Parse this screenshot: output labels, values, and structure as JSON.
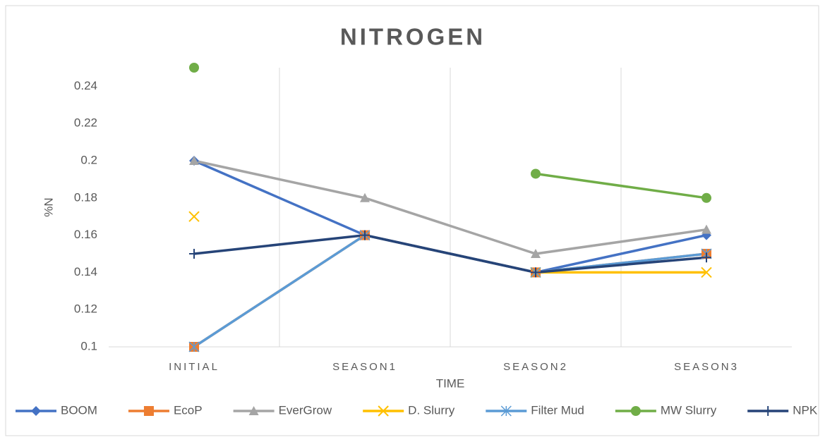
{
  "chart_data": {
    "type": "line",
    "title": "NITROGEN",
    "x_label": "TIME",
    "y_label": "%N",
    "categories": [
      "INITIAL",
      "SEASON1",
      "SEASON2",
      "SEASON3"
    ],
    "series": [
      {
        "name": "BOOM",
        "color": "#4472c4",
        "marker": "diamond",
        "values": [
          0.2,
          0.16,
          0.14,
          0.16
        ]
      },
      {
        "name": "EcoP",
        "color": "#ed7d31",
        "marker": "square",
        "values": [
          0.1,
          0.16,
          0.14,
          0.15
        ]
      },
      {
        "name": "EverGrow",
        "color": "#a5a5a5",
        "marker": "triangle",
        "values": [
          0.2,
          0.18,
          0.15,
          0.163
        ]
      },
      {
        "name": "D. Slurry",
        "color": "#ffc000",
        "marker": "x",
        "values": [
          0.17,
          null,
          0.14,
          0.14
        ]
      },
      {
        "name": "Filter Mud",
        "color": "#5b9bd5",
        "marker": "asterisk",
        "values": [
          0.1,
          0.16,
          0.14,
          0.15
        ]
      },
      {
        "name": "MW Slurry",
        "color": "#70ad47",
        "marker": "circle",
        "values": [
          0.25,
          null,
          0.193,
          0.18
        ]
      },
      {
        "name": "NPK",
        "color": "#264478",
        "marker": "plus",
        "values": [
          0.15,
          0.16,
          0.14,
          0.148
        ]
      }
    ],
    "ylim": [
      0.1,
      0.25
    ],
    "yticks": [
      0.1,
      0.12,
      0.14,
      0.16,
      0.18,
      0.2,
      0.22,
      0.24
    ],
    "legend": "bottom"
  }
}
